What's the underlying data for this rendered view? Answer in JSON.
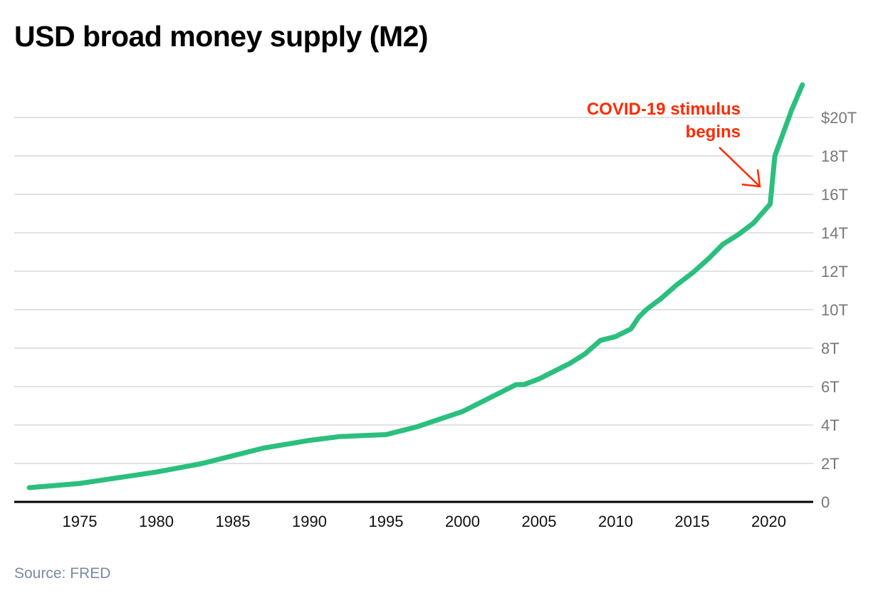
{
  "chart_data": {
    "type": "line",
    "title": "USD broad money supply (M2)",
    "source": "Source: FRED",
    "xlabel": "",
    "ylabel": "",
    "xlim": [
      1971.5,
      2023
    ],
    "ylim": [
      0,
      21.8
    ],
    "grid": true,
    "x_ticks": [
      1975,
      1980,
      1985,
      1990,
      1995,
      2000,
      2005,
      2010,
      2015,
      2020
    ],
    "x_tick_labels": [
      "1975",
      "1980",
      "1985",
      "1990",
      "1995",
      "2000",
      "2005",
      "2010",
      "2015",
      "2020"
    ],
    "y_ticks": [
      0,
      2,
      4,
      6,
      8,
      10,
      12,
      14,
      16,
      18,
      20
    ],
    "y_tick_labels": [
      "0",
      "2T",
      "4T",
      "6T",
      "8T",
      "10T",
      "12T",
      "14T",
      "16T",
      "18T",
      "$20T"
    ],
    "y_axis_position": "right",
    "color": "#2bbf7e",
    "annotation": {
      "lines": [
        "COVID-19 stimulus",
        "begins"
      ],
      "x": 2020.2,
      "color": "#ff2a00"
    },
    "series": [
      {
        "x": [
          1971.7,
          1975,
          1980,
          1983,
          1985,
          1987,
          1990,
          1992,
          1995,
          1997,
          2000,
          2002,
          2003.5,
          2004,
          2005,
          2007,
          2008,
          2009,
          2010,
          2011,
          2011.5,
          2012,
          2013,
          2014,
          2015,
          2016,
          2017,
          2018,
          2019,
          2020.1,
          2020.4,
          2021,
          2021.5,
          2022.2
        ],
        "values": [
          0.74,
          0.96,
          1.55,
          2.0,
          2.4,
          2.8,
          3.2,
          3.4,
          3.5,
          3.9,
          4.7,
          5.5,
          6.1,
          6.1,
          6.4,
          7.2,
          7.7,
          8.4,
          8.6,
          9.0,
          9.6,
          10.0,
          10.6,
          11.3,
          11.9,
          12.6,
          13.4,
          13.9,
          14.5,
          15.5,
          18.0,
          19.3,
          20.4,
          21.7
        ]
      }
    ]
  }
}
